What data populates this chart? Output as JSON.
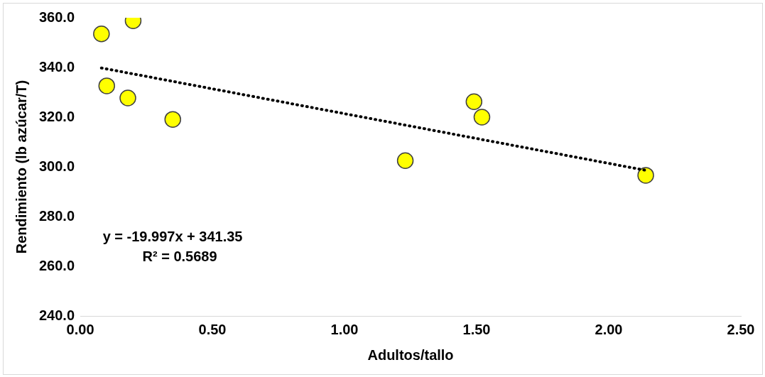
{
  "chart_data": {
    "type": "scatter",
    "xlabel": "Adultos/tallo",
    "ylabel": "Rendimiento (lb azúcar/T)",
    "xlim": [
      0,
      2.5
    ],
    "xticks": [
      {
        "value": 0,
        "label": "0.00"
      },
      {
        "value": 0.5,
        "label": "0.50"
      },
      {
        "value": 1,
        "label": "1.00"
      },
      {
        "value": 1.5,
        "label": "1.50"
      },
      {
        "value": 2,
        "label": "2.00"
      },
      {
        "value": 2.5,
        "label": "2.50"
      }
    ],
    "ylim": [
      240,
      360
    ],
    "yticks": [
      {
        "value": 240,
        "label": "240.0"
      },
      {
        "value": 260,
        "label": "260.0"
      },
      {
        "value": 280,
        "label": "280.0"
      },
      {
        "value": 300,
        "label": "300.0"
      },
      {
        "value": 320,
        "label": "320.0"
      },
      {
        "value": 340,
        "label": "340.0"
      },
      {
        "value": 360,
        "label": "360.0"
      }
    ],
    "grid": false,
    "legend": false,
    "marker": "circle",
    "series": [
      {
        "color": "#ffff00",
        "x": [
          0.08,
          0.2,
          0.1,
          0.18,
          0.35,
          1.23,
          1.49,
          1.52,
          2.14
        ],
        "values": [
          353.5,
          358.8,
          332.6,
          327.7,
          319.1,
          302.5,
          326.2,
          320.0,
          296.6
        ]
      },
      {
        "type": "line",
        "color": "#000000",
        "line_style": "dotted",
        "marker": "none",
        "x": [
          0.08,
          2.14
        ],
        "values": [
          339.8,
          298.6
        ]
      }
    ],
    "annotations": [
      "y = -19.997x + 341.35",
      "R² = 0.5689"
    ]
  }
}
